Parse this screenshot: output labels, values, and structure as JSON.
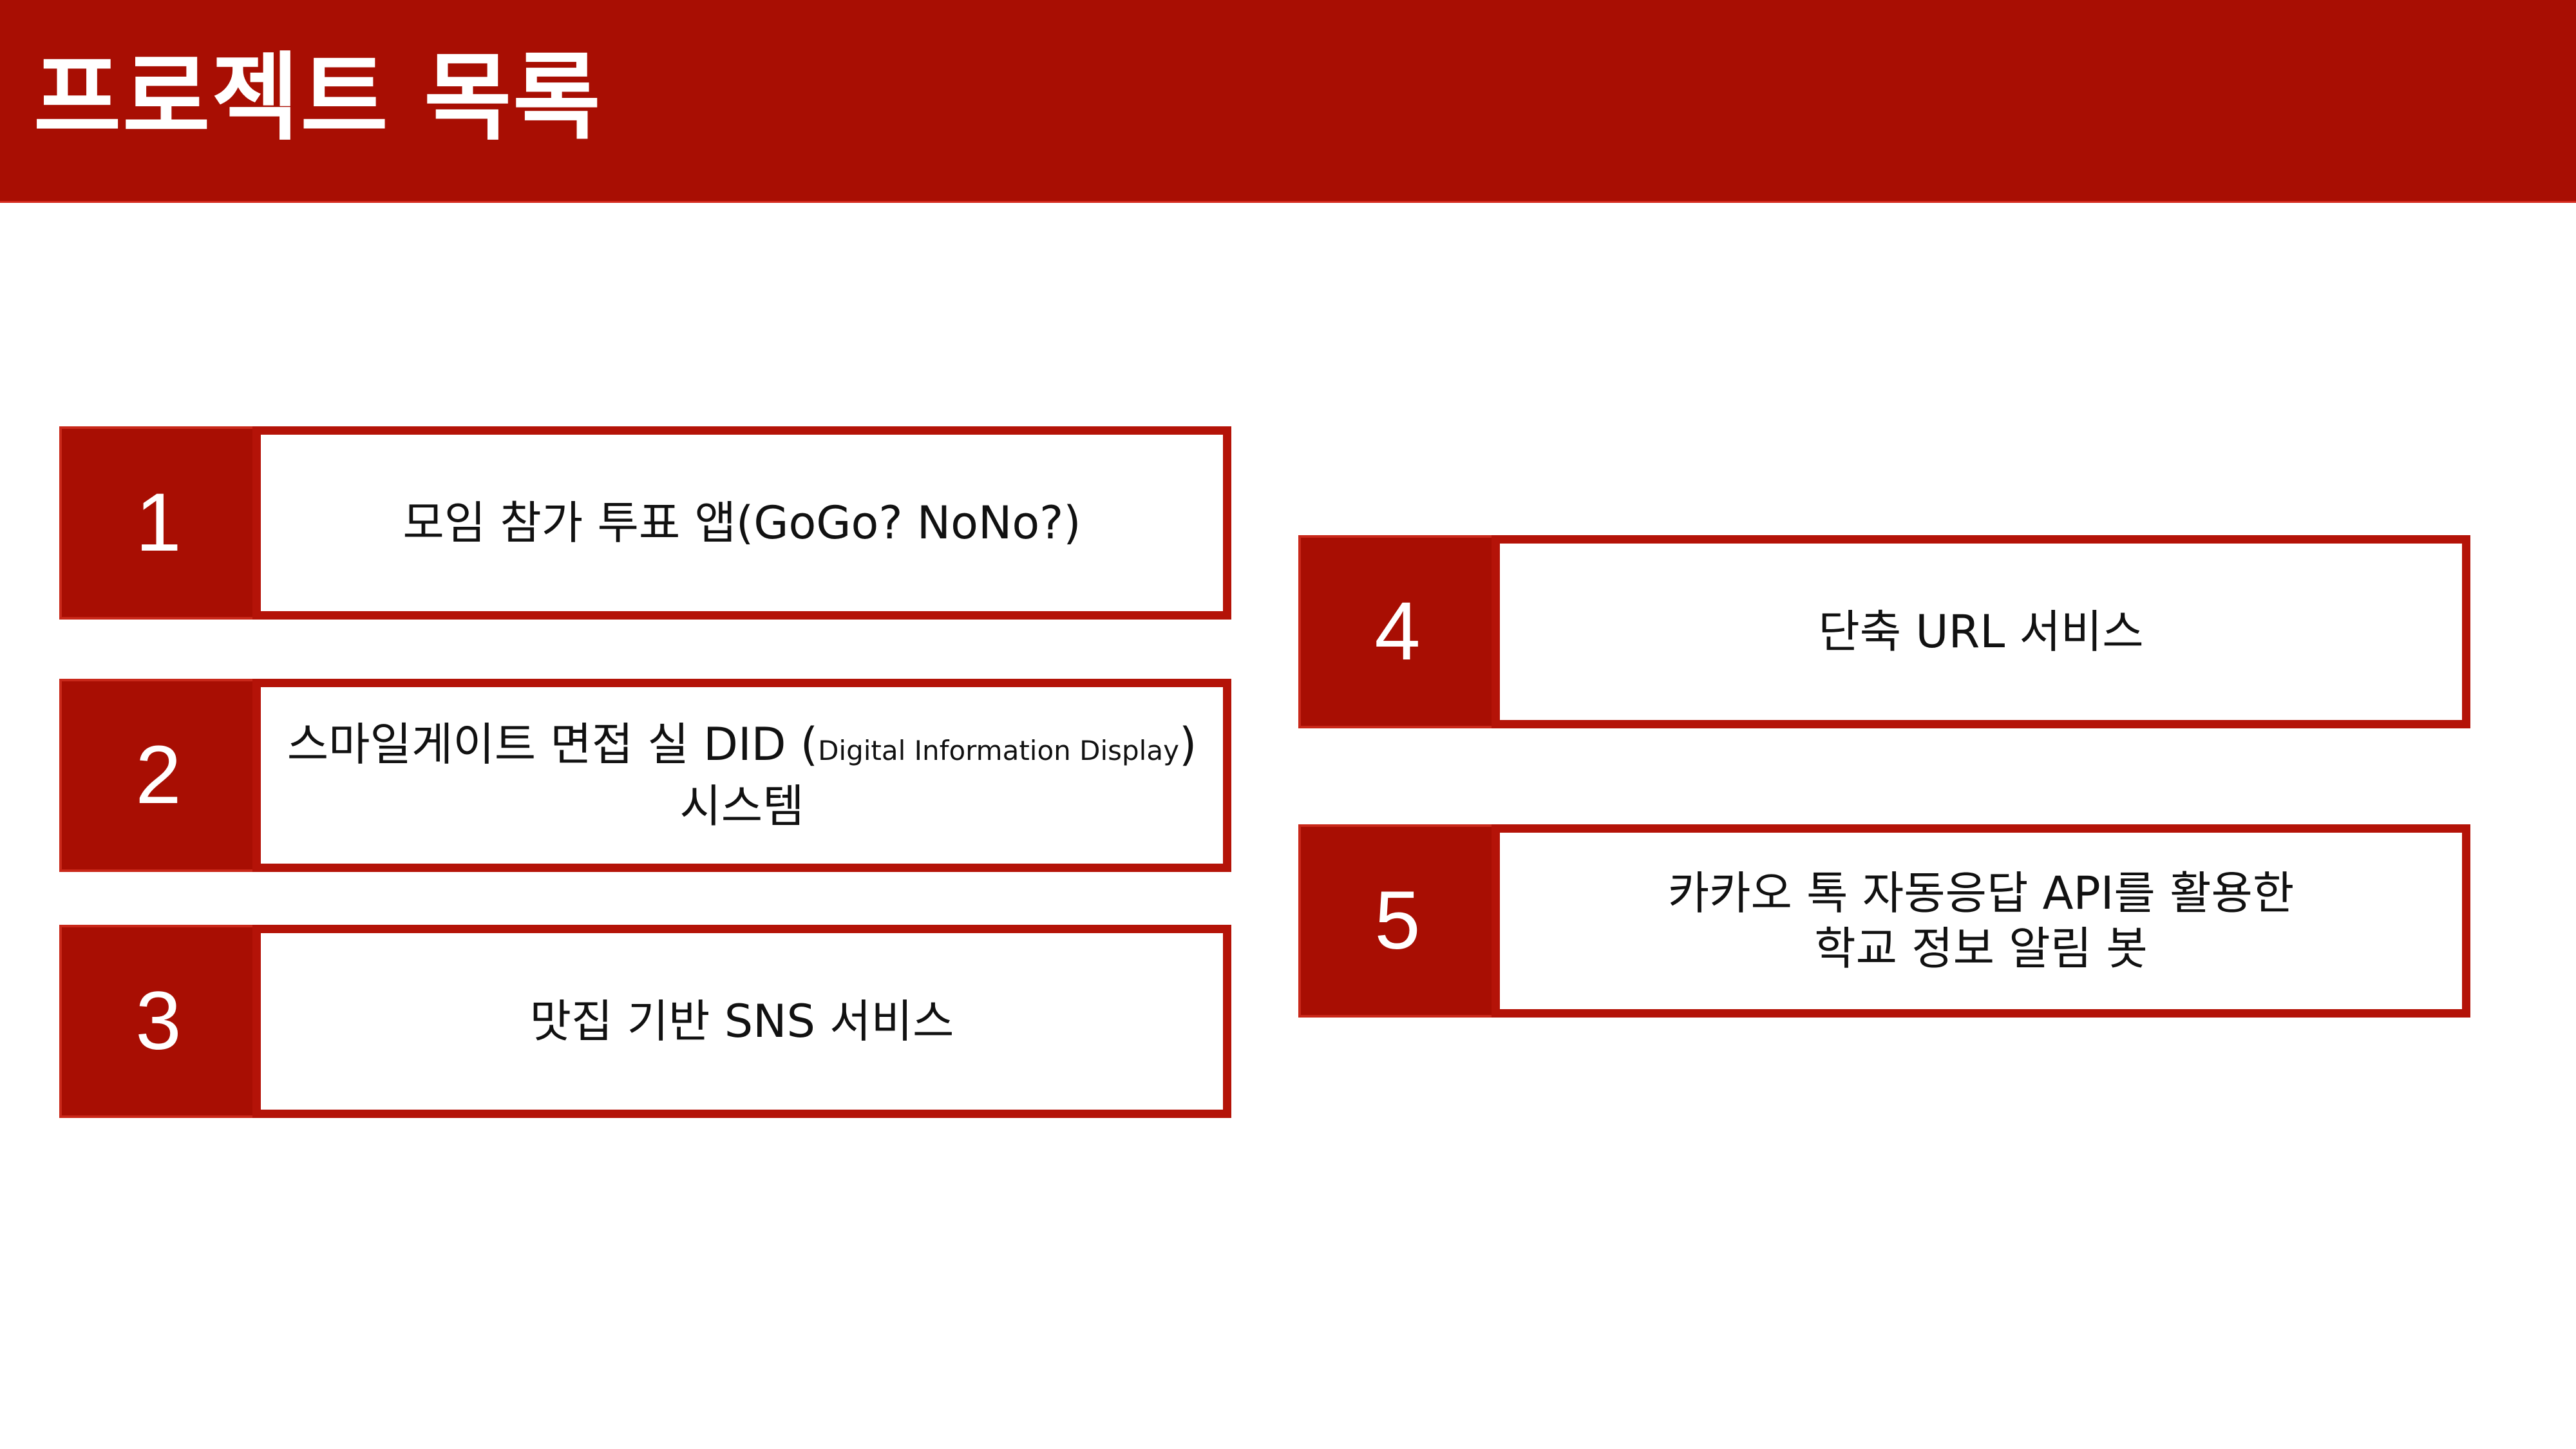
{
  "header": {
    "title": "프로젝트 목록"
  },
  "projects": [
    {
      "number": "1",
      "title": "모임 참가 투표 앱(GoGo? NoNo?)"
    },
    {
      "number": "2",
      "title_main": "스마일게이트 면접 실 DID (",
      "title_small": "Digital Information Display",
      "title_close": ")",
      "title_line2": "시스템"
    },
    {
      "number": "3",
      "title": "맛집 기반 SNS 서비스"
    },
    {
      "number": "4",
      "title": "단축 URL 서비스"
    },
    {
      "number": "5",
      "title_line1": "카카오 톡 자동응답 API를 활용한",
      "title_line2": "학교 정보 알림 봇"
    }
  ],
  "colors": {
    "header_bg": "#a80e03",
    "accent": "#b41308",
    "text": "#111111"
  }
}
